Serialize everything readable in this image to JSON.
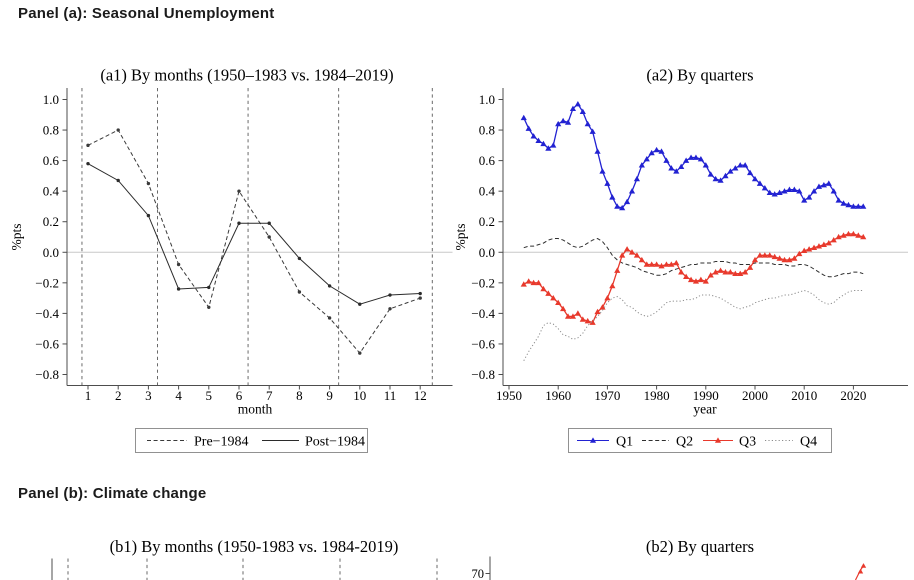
{
  "page": {
    "background": "#ffffff"
  },
  "panel_a": {
    "heading": "Panel (a): Seasonal Unemployment"
  },
  "panel_b": {
    "heading": "Panel (b): Climate change"
  },
  "colors": {
    "q1_blue": "#2222d2",
    "q3_red": "#e8392c",
    "q2_dark": "#2f2f2f",
    "q4_gray": "#8c8c8c",
    "pre_dark": "#3a3a3a",
    "post_dark": "#2b2b2b",
    "axis": "#4d4d4d",
    "grid_dash": "#5a5a5a",
    "zero_line": "#c8c8c8",
    "legend_border": "#919191"
  },
  "chart_data": [
    {
      "id": "a1",
      "type": "line",
      "title": "(a1) By months (1950–1983 vs. 1984–2019)",
      "xlabel": "month",
      "ylabel": "%pts",
      "categories": [
        1,
        2,
        3,
        4,
        5,
        6,
        7,
        8,
        9,
        10,
        11,
        12
      ],
      "xtick_labels": [
        "1",
        "2",
        "3",
        "4",
        "5",
        "6",
        "7",
        "8",
        "9",
        "10",
        "11",
        "12"
      ],
      "yticks": [
        1.0,
        0.8,
        0.6,
        0.4,
        0.2,
        0.0,
        -0.2,
        -0.4,
        -0.6,
        -0.8
      ],
      "ytick_labels": [
        "1.0",
        "0.8",
        "0.6",
        "0.4",
        "0.2",
        "0.0",
        "−0.2",
        "−0.4",
        "−0.6",
        "−0.8"
      ],
      "ylim": [
        -0.9,
        1.08
      ],
      "zero_line": true,
      "vlines_x": [
        0.8,
        3.3,
        6.3,
        9.3,
        12.4
      ],
      "legend_position": "bottom",
      "series": [
        {
          "name": "Pre−1984",
          "line": "dashed",
          "marker": "dot",
          "values": [
            0.7,
            0.8,
            0.45,
            -0.08,
            -0.36,
            0.4,
            0.1,
            -0.26,
            -0.43,
            -0.66,
            -0.37,
            -0.3
          ]
        },
        {
          "name": "Post−1984",
          "line": "solid",
          "marker": "dot",
          "values": [
            0.58,
            0.47,
            0.24,
            -0.24,
            -0.23,
            0.19,
            0.19,
            -0.04,
            -0.22,
            -0.34,
            -0.28,
            -0.27
          ]
        }
      ]
    },
    {
      "id": "a2",
      "type": "line",
      "title": "(a2) By quarters",
      "xlabel": "year",
      "ylabel": "%pts",
      "x_start": 1953,
      "x_step": 1,
      "xticks": [
        1950,
        1960,
        1970,
        1980,
        1990,
        2000,
        2010,
        2020
      ],
      "xtick_labels": [
        "1950",
        "1960",
        "1970",
        "1980",
        "1990",
        "2000",
        "2010",
        "2020"
      ],
      "yticks": [
        1.0,
        0.8,
        0.6,
        0.4,
        0.2,
        0.0,
        -0.2,
        -0.4,
        -0.6,
        -0.8
      ],
      "ytick_labels": [
        "1.0",
        "0.8",
        "0.6",
        "0.4",
        "0.2",
        "0.0",
        "−0.2",
        "−0.4",
        "−0.6",
        "−0.8"
      ],
      "ylim": [
        -0.9,
        1.08
      ],
      "zero_line": true,
      "legend_position": "bottom",
      "series": [
        {
          "name": "Q1",
          "color": "#2222d2",
          "line": "solid",
          "marker": "triangle",
          "values": [
            0.88,
            0.81,
            0.76,
            0.73,
            0.71,
            0.68,
            0.7,
            0.84,
            0.86,
            0.85,
            0.94,
            0.97,
            0.92,
            0.84,
            0.79,
            0.66,
            0.53,
            0.45,
            0.36,
            0.3,
            0.29,
            0.33,
            0.4,
            0.48,
            0.57,
            0.61,
            0.65,
            0.67,
            0.66,
            0.6,
            0.55,
            0.53,
            0.56,
            0.6,
            0.62,
            0.62,
            0.61,
            0.57,
            0.51,
            0.48,
            0.47,
            0.5,
            0.53,
            0.55,
            0.57,
            0.57,
            0.52,
            0.48,
            0.45,
            0.42,
            0.39,
            0.38,
            0.39,
            0.4,
            0.41,
            0.41,
            0.4,
            0.34,
            0.36,
            0.4,
            0.43,
            0.44,
            0.45,
            0.4,
            0.34,
            0.32,
            0.31,
            0.3,
            0.3,
            0.3
          ]
        },
        {
          "name": "Q2",
          "color": "#2f2f2f",
          "line": "dashed",
          "marker": "none",
          "values": [
            0.03,
            0.04,
            0.04,
            0.05,
            0.06,
            0.08,
            0.09,
            0.09,
            0.08,
            0.06,
            0.04,
            0.03,
            0.04,
            0.06,
            0.08,
            0.09,
            0.07,
            0.03,
            -0.02,
            -0.05,
            -0.07,
            -0.08,
            -0.09,
            -0.1,
            -0.12,
            -0.13,
            -0.14,
            -0.15,
            -0.15,
            -0.14,
            -0.12,
            -0.11,
            -0.1,
            -0.09,
            -0.08,
            -0.08,
            -0.07,
            -0.07,
            -0.07,
            -0.06,
            -0.06,
            -0.06,
            -0.07,
            -0.07,
            -0.08,
            -0.08,
            -0.08,
            -0.07,
            -0.07,
            -0.07,
            -0.07,
            -0.08,
            -0.08,
            -0.08,
            -0.09,
            -0.09,
            -0.08,
            -0.08,
            -0.09,
            -0.11,
            -0.13,
            -0.15,
            -0.16,
            -0.16,
            -0.15,
            -0.14,
            -0.14,
            -0.13,
            -0.13,
            -0.14
          ]
        },
        {
          "name": "Q3",
          "color": "#e8392c",
          "line": "solid",
          "marker": "triangle",
          "values": [
            -0.21,
            -0.19,
            -0.2,
            -0.2,
            -0.24,
            -0.27,
            -0.3,
            -0.33,
            -0.37,
            -0.42,
            -0.42,
            -0.4,
            -0.44,
            -0.45,
            -0.46,
            -0.39,
            -0.36,
            -0.3,
            -0.22,
            -0.12,
            -0.02,
            0.02,
            0.0,
            -0.02,
            -0.05,
            -0.08,
            -0.08,
            -0.08,
            -0.09,
            -0.08,
            -0.08,
            -0.07,
            -0.13,
            -0.16,
            -0.18,
            -0.19,
            -0.18,
            -0.19,
            -0.15,
            -0.13,
            -0.12,
            -0.13,
            -0.13,
            -0.14,
            -0.14,
            -0.13,
            -0.1,
            -0.05,
            -0.02,
            -0.02,
            -0.02,
            -0.03,
            -0.04,
            -0.05,
            -0.05,
            -0.04,
            -0.01,
            0.01,
            0.02,
            0.03,
            0.04,
            0.05,
            0.06,
            0.08,
            0.1,
            0.11,
            0.12,
            0.12,
            0.11,
            0.1
          ]
        },
        {
          "name": "Q4",
          "color": "#8c8c8c",
          "line": "dotted",
          "marker": "none",
          "values": [
            -0.71,
            -0.65,
            -0.6,
            -0.55,
            -0.48,
            -0.46,
            -0.47,
            -0.5,
            -0.54,
            -0.55,
            -0.57,
            -0.56,
            -0.53,
            -0.48,
            -0.45,
            -0.42,
            -0.38,
            -0.33,
            -0.3,
            -0.29,
            -0.31,
            -0.35,
            -0.36,
            -0.39,
            -0.41,
            -0.42,
            -0.41,
            -0.39,
            -0.36,
            -0.33,
            -0.32,
            -0.32,
            -0.32,
            -0.31,
            -0.31,
            -0.3,
            -0.28,
            -0.28,
            -0.28,
            -0.29,
            -0.3,
            -0.32,
            -0.34,
            -0.36,
            -0.37,
            -0.36,
            -0.35,
            -0.33,
            -0.32,
            -0.31,
            -0.3,
            -0.3,
            -0.29,
            -0.28,
            -0.28,
            -0.27,
            -0.26,
            -0.25,
            -0.26,
            -0.28,
            -0.31,
            -0.33,
            -0.34,
            -0.33,
            -0.3,
            -0.28,
            -0.26,
            -0.25,
            -0.25,
            -0.25
          ]
        }
      ]
    },
    {
      "id": "b1",
      "type": "line",
      "partial": true,
      "title": "(b1) By months (1950-1983 vs. 1984-2019)"
    },
    {
      "id": "b2",
      "type": "line",
      "partial": true,
      "title": "(b2) By quarters",
      "ytick_labels_visible": [
        "70"
      ],
      "series": [
        {
          "name": "red-line-fragment",
          "color": "#e8392c",
          "marker": "triangle"
        }
      ]
    }
  ]
}
